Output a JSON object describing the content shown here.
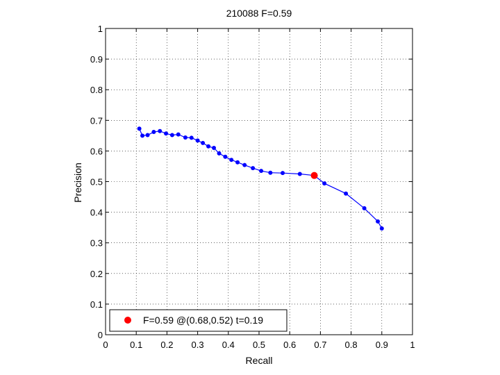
{
  "chart_data": {
    "type": "line",
    "title": "210088 F=0.59",
    "xlabel": "Recall",
    "ylabel": "Precision",
    "xlim": [
      0,
      1
    ],
    "ylim": [
      0,
      1
    ],
    "xticks": [
      0,
      0.1,
      0.2,
      0.3,
      0.4,
      0.5,
      0.6,
      0.7,
      0.8,
      0.9,
      1
    ],
    "yticks": [
      0,
      0.1,
      0.2,
      0.3,
      0.4,
      0.5,
      0.6,
      0.7,
      0.8,
      0.9,
      1
    ],
    "xtick_labels": [
      "0",
      "0.1",
      "0.2",
      "0.3",
      "0.4",
      "0.5",
      "0.6",
      "0.7",
      "0.8",
      "0.9",
      "1"
    ],
    "ytick_labels": [
      "0",
      "0.1",
      "0.2",
      "0.3",
      "0.4",
      "0.5",
      "0.6",
      "0.7",
      "0.8",
      "0.9",
      "1"
    ],
    "grid": true,
    "legend_position": "bottom-left",
    "colors": {
      "curve": "#0000ff",
      "best": "#ff0000",
      "axes": "#000000"
    },
    "series": [
      {
        "x": [
          0.11,
          0.12,
          0.137,
          0.157,
          0.177,
          0.197,
          0.217,
          0.237,
          0.26,
          0.28,
          0.3,
          0.317,
          0.335,
          0.353,
          0.37,
          0.39,
          0.41,
          0.43,
          0.453,
          0.48,
          0.507,
          0.537,
          0.577,
          0.633,
          0.68,
          0.713,
          0.783,
          0.843,
          0.887,
          0.9
        ],
        "y": [
          0.673,
          0.65,
          0.652,
          0.662,
          0.665,
          0.657,
          0.652,
          0.654,
          0.644,
          0.643,
          0.634,
          0.626,
          0.615,
          0.61,
          0.592,
          0.581,
          0.571,
          0.563,
          0.554,
          0.544,
          0.535,
          0.529,
          0.528,
          0.525,
          0.52,
          0.494,
          0.461,
          0.413,
          0.37,
          0.347
        ]
      }
    ],
    "best_point": {
      "x": 0.68,
      "y": 0.52
    },
    "legend_entries": [
      "F=0.59 @(0.68,0.52) t=0.19"
    ]
  }
}
